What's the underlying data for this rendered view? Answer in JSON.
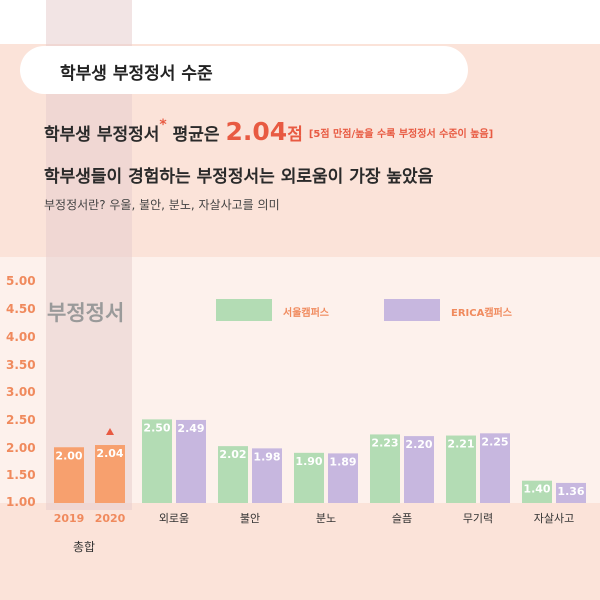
{
  "header": {
    "title": "학부생 부정정서 수준"
  },
  "headline": {
    "prefix": "학부생 부정정서",
    "star": "*",
    "middle": " 평균은 ",
    "value": "2.04",
    "unit": "점",
    "note": "[5점 만점/높을 수록 부정정서 수준이 높음]"
  },
  "subline": "학부생들이 경험하는 부정정서는 외로움이 가장 높았음",
  "description": "부정정서란? 우울, 불안, 분노, 자살사고를 의미",
  "colors": {
    "total": "#f7a06e",
    "seoul": "#b3dcb4",
    "erica": "#c7b7df",
    "accent": "#e85a42",
    "tick": "#f08a5d"
  },
  "chart_data": {
    "type": "bar",
    "title": "부정정서",
    "ylim": [
      1.0,
      5.0
    ],
    "yticks": [
      "1.00",
      "1.50",
      "2.00",
      "2.50",
      "3.00",
      "3.50",
      "4.00",
      "4.50",
      "5.00"
    ],
    "total": {
      "group_label": "총합",
      "categories": [
        "2019",
        "2020"
      ],
      "values": [
        2.0,
        2.04
      ],
      "labels": [
        "2.00",
        "2.04"
      ],
      "trend": "up"
    },
    "categories": [
      "외로움",
      "불안",
      "분노",
      "슬픔",
      "무기력",
      "자살사고"
    ],
    "series": [
      {
        "name": "서울캠퍼스",
        "values": [
          2.5,
          2.02,
          1.9,
          2.23,
          2.21,
          1.4
        ],
        "labels": [
          "2.50",
          "2.02",
          "1.90",
          "2.23",
          "2.21",
          "1.40"
        ]
      },
      {
        "name": "ERICA캠퍼스",
        "values": [
          2.49,
          1.98,
          1.89,
          2.2,
          2.25,
          1.36
        ],
        "labels": [
          "2.49",
          "1.98",
          "1.89",
          "2.20",
          "2.25",
          "1.36"
        ]
      }
    ]
  }
}
